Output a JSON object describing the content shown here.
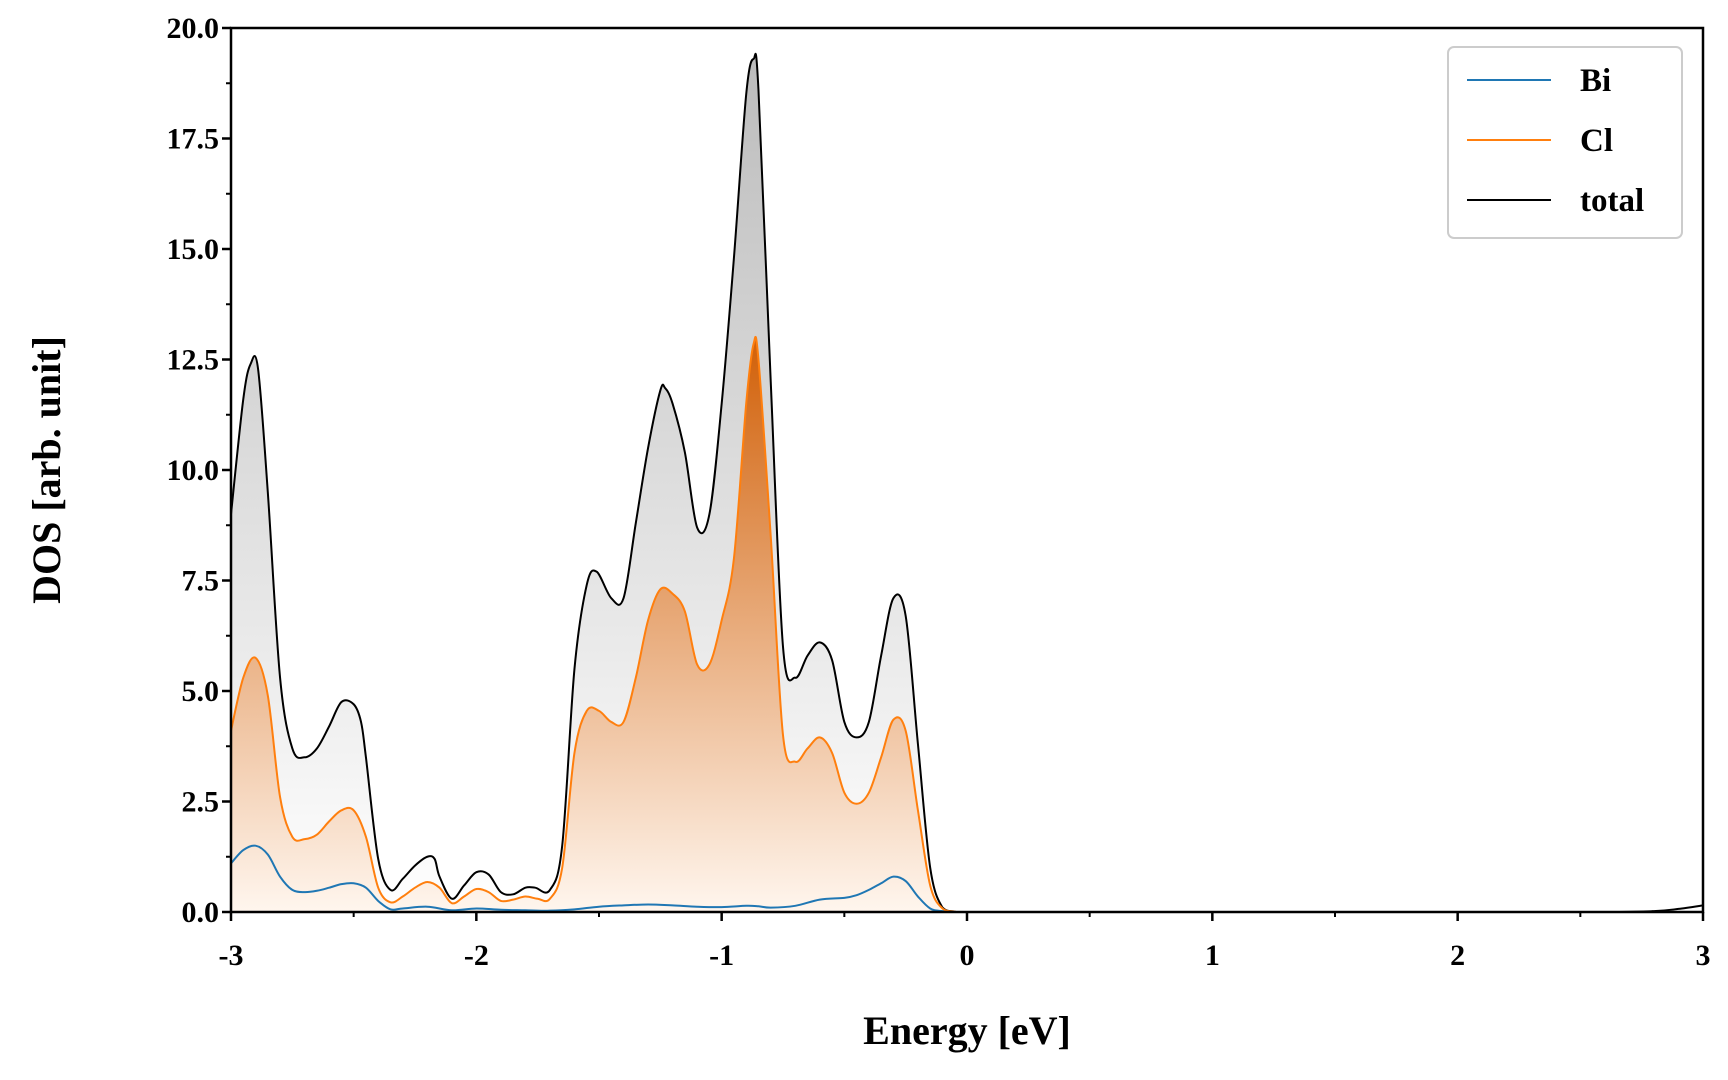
{
  "chart_data": {
    "type": "line",
    "xlabel": "Energy [eV]",
    "ylabel": "DOS [arb. unit]",
    "xlim": [
      -3,
      3
    ],
    "ylim": [
      0,
      20
    ],
    "x_ticks": [
      -3,
      -2,
      -1,
      0,
      1,
      2,
      3
    ],
    "x_tick_labels": [
      "-3",
      "-2",
      "-1",
      "0",
      "1",
      "2",
      "3"
    ],
    "y_ticks": [
      0,
      2.5,
      5,
      7.5,
      10,
      12.5,
      15,
      17.5,
      20
    ],
    "y_tick_labels": [
      "0.0",
      "2.5",
      "5.0",
      "7.5",
      "10.0",
      "12.5",
      "15.0",
      "17.5",
      "20.0"
    ],
    "grid": false,
    "legend_position": "top-right",
    "series": [
      {
        "name": "Bi",
        "color": "#1f77b4",
        "x": [
          -3.0,
          -2.95,
          -2.9,
          -2.85,
          -2.8,
          -2.75,
          -2.7,
          -2.65,
          -2.6,
          -2.55,
          -2.5,
          -2.45,
          -2.4,
          -2.35,
          -2.3,
          -2.2,
          -2.1,
          -2.0,
          -1.9,
          -1.8,
          -1.7,
          -1.6,
          -1.5,
          -1.4,
          -1.3,
          -1.2,
          -1.1,
          -1.0,
          -0.9,
          -0.85,
          -0.8,
          -0.7,
          -0.6,
          -0.5,
          -0.45,
          -0.4,
          -0.35,
          -0.3,
          -0.25,
          -0.2,
          -0.15,
          -0.1,
          0.0,
          1.0,
          2.0,
          3.0
        ],
        "values": [
          1.1,
          1.4,
          1.5,
          1.3,
          0.8,
          0.5,
          0.45,
          0.48,
          0.55,
          0.63,
          0.65,
          0.55,
          0.25,
          0.06,
          0.08,
          0.12,
          0.04,
          0.08,
          0.05,
          0.04,
          0.03,
          0.06,
          0.12,
          0.15,
          0.17,
          0.15,
          0.12,
          0.11,
          0.14,
          0.13,
          0.1,
          0.14,
          0.28,
          0.32,
          0.38,
          0.5,
          0.65,
          0.8,
          0.7,
          0.35,
          0.08,
          0.02,
          0.0,
          0.0,
          0.0,
          0.0
        ]
      },
      {
        "name": "Cl",
        "color": "#ff7f0e",
        "x": [
          -3.0,
          -2.95,
          -2.9,
          -2.85,
          -2.8,
          -2.75,
          -2.7,
          -2.65,
          -2.6,
          -2.55,
          -2.5,
          -2.45,
          -2.4,
          -2.35,
          -2.3,
          -2.25,
          -2.2,
          -2.15,
          -2.1,
          -2.05,
          -2.0,
          -1.95,
          -1.9,
          -1.85,
          -1.8,
          -1.75,
          -1.7,
          -1.65,
          -1.6,
          -1.55,
          -1.5,
          -1.45,
          -1.4,
          -1.35,
          -1.3,
          -1.25,
          -1.2,
          -1.15,
          -1.1,
          -1.05,
          -1.0,
          -0.95,
          -0.9,
          -0.87,
          -0.85,
          -0.8,
          -0.75,
          -0.7,
          -0.65,
          -0.6,
          -0.55,
          -0.5,
          -0.45,
          -0.4,
          -0.35,
          -0.3,
          -0.25,
          -0.2,
          -0.15,
          -0.1,
          -0.05,
          0.0,
          1.0,
          2.0,
          3.0
        ],
        "values": [
          4.1,
          5.3,
          5.75,
          4.9,
          2.6,
          1.7,
          1.65,
          1.75,
          2.05,
          2.3,
          2.3,
          1.7,
          0.55,
          0.22,
          0.35,
          0.55,
          0.68,
          0.55,
          0.2,
          0.35,
          0.52,
          0.45,
          0.25,
          0.28,
          0.35,
          0.3,
          0.3,
          1.0,
          3.6,
          4.55,
          4.55,
          4.3,
          4.3,
          5.3,
          6.6,
          7.3,
          7.2,
          6.8,
          5.6,
          5.6,
          6.6,
          8.0,
          11.5,
          12.85,
          12.5,
          8.5,
          4.0,
          3.4,
          3.7,
          3.95,
          3.6,
          2.7,
          2.45,
          2.7,
          3.5,
          4.35,
          4.1,
          2.3,
          0.6,
          0.08,
          0.01,
          0.0,
          0.0,
          0.0,
          0.0
        ]
      },
      {
        "name": "total",
        "color": "#000000",
        "x": [
          -3.0,
          -2.95,
          -2.92,
          -2.89,
          -2.85,
          -2.8,
          -2.75,
          -2.7,
          -2.65,
          -2.6,
          -2.55,
          -2.5,
          -2.47,
          -2.45,
          -2.4,
          -2.35,
          -2.3,
          -2.25,
          -2.2,
          -2.17,
          -2.15,
          -2.1,
          -2.05,
          -2.0,
          -1.95,
          -1.9,
          -1.85,
          -1.8,
          -1.76,
          -1.7,
          -1.65,
          -1.6,
          -1.55,
          -1.51,
          -1.45,
          -1.4,
          -1.35,
          -1.3,
          -1.25,
          -1.23,
          -1.2,
          -1.15,
          -1.1,
          -1.05,
          -1.0,
          -0.95,
          -0.9,
          -0.87,
          -0.85,
          -0.8,
          -0.75,
          -0.7,
          -0.65,
          -0.6,
          -0.55,
          -0.5,
          -0.45,
          -0.4,
          -0.35,
          -0.3,
          -0.25,
          -0.2,
          -0.15,
          -0.1,
          -0.05,
          0.0,
          1.0,
          2.0,
          2.6,
          2.8,
          2.9,
          3.0
        ],
        "values": [
          9.0,
          11.6,
          12.4,
          12.3,
          9.5,
          5.3,
          3.7,
          3.5,
          3.7,
          4.2,
          4.75,
          4.7,
          4.3,
          3.5,
          1.2,
          0.5,
          0.75,
          1.05,
          1.25,
          1.2,
          0.8,
          0.3,
          0.6,
          0.9,
          0.85,
          0.45,
          0.4,
          0.55,
          0.55,
          0.5,
          1.5,
          5.5,
          7.4,
          7.7,
          7.1,
          7.1,
          8.8,
          10.5,
          11.8,
          11.85,
          11.5,
          10.4,
          8.7,
          9.0,
          11.5,
          14.8,
          18.5,
          19.3,
          18.6,
          12.0,
          6.0,
          5.3,
          5.8,
          6.1,
          5.7,
          4.3,
          3.95,
          4.3,
          5.8,
          7.1,
          6.7,
          3.8,
          1.0,
          0.1,
          0.01,
          0.0,
          0.0,
          0.0,
          0.0,
          0.02,
          0.07,
          0.15
        ]
      }
    ]
  }
}
